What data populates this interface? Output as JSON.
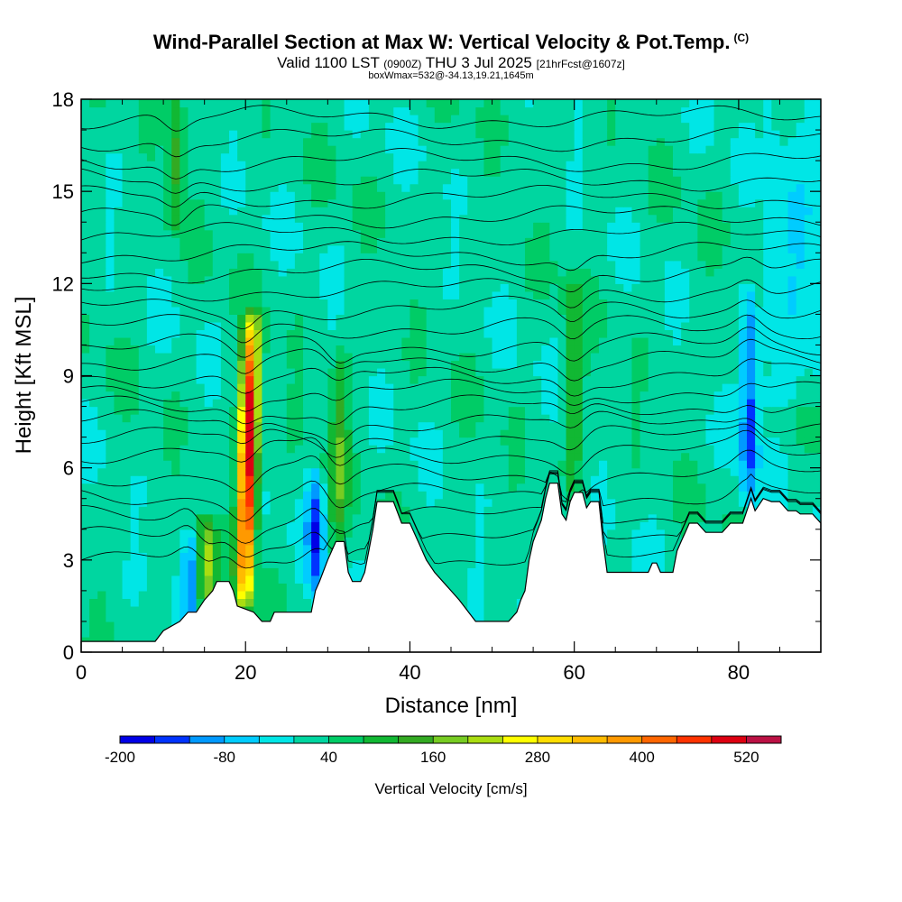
{
  "header": {
    "title": "Wind-Parallel Section at Max W: Vertical Velocity & Pot.Temp.",
    "title_tag": "(C)",
    "valid_prefix": "Valid 1100 LST",
    "valid_utc": "(0900Z)",
    "valid_date": "THU 3 Jul 2025",
    "forecast": "[21hrFcst@1607z]",
    "box_info": "boxWmax=532@-34.13,19.21,1645m"
  },
  "chart_data": {
    "type": "heatmap",
    "xlabel": "Distance [nm]",
    "ylabel": "Height [Kft MSL]",
    "xlim": [
      0,
      90
    ],
    "ylim": [
      0,
      18
    ],
    "xticks": [
      0,
      20,
      40,
      60,
      80
    ],
    "yticks": [
      0,
      3,
      6,
      9,
      12,
      15,
      18
    ],
    "colorbar": {
      "title": "Vertical Velocity [cm/s]",
      "min": -200,
      "max": 560,
      "step": 40,
      "tick_labels": [
        -200,
        -80,
        40,
        160,
        280,
        400,
        520
      ],
      "colors": [
        "#0000e6",
        "#0033ff",
        "#0099ff",
        "#00ccff",
        "#00e6e6",
        "#00d6a0",
        "#00cc66",
        "#11b833",
        "#33aa22",
        "#77cc22",
        "#aadd11",
        "#ffff00",
        "#ffdd00",
        "#ffbb00",
        "#ff9900",
        "#ff6600",
        "#ff3300",
        "#dd0011",
        "#bb1144"
      ]
    },
    "terrain": [
      [
        0,
        0.35
      ],
      [
        9,
        0.35
      ],
      [
        10,
        0.7
      ],
      [
        12,
        1.0
      ],
      [
        13,
        1.3
      ],
      [
        14,
        1.3
      ],
      [
        15,
        1.7
      ],
      [
        16,
        2.0
      ],
      [
        16.5,
        2.3
      ],
      [
        18,
        2.3
      ],
      [
        18.5,
        2.0
      ],
      [
        19,
        1.5
      ],
      [
        21,
        1.3
      ],
      [
        22,
        1.0
      ],
      [
        23,
        1.0
      ],
      [
        23.5,
        1.3
      ],
      [
        28,
        1.3
      ],
      [
        28.5,
        2.0
      ],
      [
        29,
        2.3
      ],
      [
        30,
        3.0
      ],
      [
        31,
        3.6
      ],
      [
        32,
        3.6
      ],
      [
        32.5,
        2.6
      ],
      [
        33,
        2.3
      ],
      [
        34,
        2.3
      ],
      [
        34.5,
        2.6
      ],
      [
        35,
        3.3
      ],
      [
        35.5,
        4.0
      ],
      [
        36,
        4.9
      ],
      [
        38,
        4.9
      ],
      [
        39,
        4.2
      ],
      [
        40,
        4.2
      ],
      [
        41,
        3.6
      ],
      [
        42,
        3.0
      ],
      [
        43,
        2.6
      ],
      [
        44,
        2.3
      ],
      [
        45,
        2.0
      ],
      [
        46,
        1.7
      ],
      [
        48,
        1.0
      ],
      [
        50,
        1.0
      ],
      [
        51,
        1.0
      ],
      [
        52,
        1.0
      ],
      [
        53,
        1.3
      ],
      [
        53.5,
        1.7
      ],
      [
        54,
        2.0
      ],
      [
        54.5,
        3.0
      ],
      [
        55,
        3.6
      ],
      [
        56,
        4.3
      ],
      [
        56.5,
        5.0
      ],
      [
        57,
        5.5
      ],
      [
        58,
        5.5
      ],
      [
        58.5,
        4.5
      ],
      [
        59,
        4.3
      ],
      [
        59.5,
        4.9
      ],
      [
        60,
        5.2
      ],
      [
        61,
        5.2
      ],
      [
        61.5,
        4.7
      ],
      [
        62,
        4.9
      ],
      [
        63,
        4.9
      ],
      [
        63.5,
        3.6
      ],
      [
        64,
        2.6
      ],
      [
        69,
        2.6
      ],
      [
        69.5,
        2.9
      ],
      [
        70,
        2.9
      ],
      [
        70.5,
        2.6
      ],
      [
        72,
        2.6
      ],
      [
        72.5,
        3.3
      ],
      [
        73,
        3.6
      ],
      [
        73.5,
        3.9
      ],
      [
        74,
        4.2
      ],
      [
        75,
        4.2
      ],
      [
        76,
        3.9
      ],
      [
        78,
        3.9
      ],
      [
        79,
        4.2
      ],
      [
        80.5,
        4.2
      ],
      [
        81,
        4.6
      ],
      [
        81.5,
        5.0
      ],
      [
        82,
        4.6
      ],
      [
        83,
        5.0
      ],
      [
        84,
        4.9
      ],
      [
        85,
        4.9
      ],
      [
        86,
        4.6
      ],
      [
        87,
        4.6
      ],
      [
        87.5,
        4.5
      ],
      [
        89,
        4.5
      ],
      [
        90,
        4.2
      ]
    ],
    "plumes": [
      {
        "x": 19.8,
        "y0": 1.8,
        "y1": 10.6,
        "lean": 0.55,
        "peak": 520
      },
      {
        "x": 15.2,
        "y0": 1.6,
        "y1": 4.0,
        "lean": 0.0,
        "peak": 180
      },
      {
        "x": 31.2,
        "y0": 3.6,
        "y1": 9.5,
        "lean": 0.25,
        "peak": 120
      },
      {
        "x": 11.5,
        "y0": 14.0,
        "y1": 18,
        "lean": 0.0,
        "peak": 110
      },
      {
        "x": 59.8,
        "y0": 5.3,
        "y1": 12.0,
        "lean": 0.1,
        "peak": 100
      },
      {
        "x": 81.2,
        "y0": 5.0,
        "y1": 11.5,
        "lean": 0.2,
        "peak": -160
      },
      {
        "x": 28.6,
        "y0": 2.2,
        "y1": 5.5,
        "lean": -0.2,
        "peak": -150
      },
      {
        "x": 13.3,
        "y0": 1.4,
        "y1": 3.5,
        "lean": 0.0,
        "peak": -120
      }
    ],
    "isentropes": [
      3,
      3.7,
      4.4,
      5.1,
      5.8,
      6.5,
      7.0,
      7.5,
      8.0,
      8.5,
      9.0,
      9.5,
      10.0,
      10.6,
      11.2,
      11.8,
      12.4,
      13.0,
      13.6,
      14.2,
      14.8,
      15.4,
      16.0,
      16.7,
      17.4
    ]
  }
}
